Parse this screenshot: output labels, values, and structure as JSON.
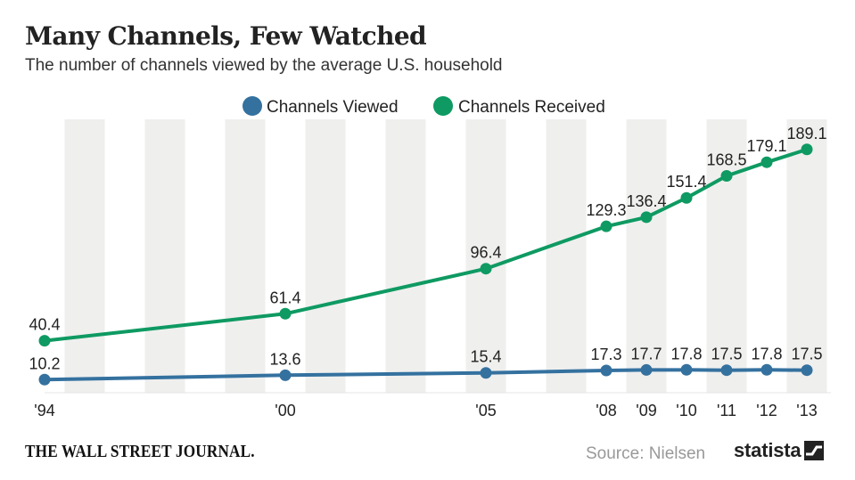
{
  "header": {
    "title": "Many Channels, Few Watched",
    "subtitle": "The number of channels viewed by the average U.S. household"
  },
  "footer": {
    "publisher": "THE WALL STREET JOURNAL.",
    "source": "Source: Nielsen",
    "brand": "statista"
  },
  "colors": {
    "viewed": "#34719f",
    "received": "#0e9a62",
    "band": "#efefee"
  },
  "chart_data": {
    "type": "line",
    "x": [
      1994,
      2000,
      2005,
      2008,
      2009,
      2010,
      2011,
      2012,
      2013
    ],
    "tick_labels": [
      "'94",
      "'00",
      "'05",
      "'08",
      "'09",
      "'10",
      "'11",
      "'12",
      "'13"
    ],
    "series": [
      {
        "name": "Channels Viewed",
        "values": [
          10.2,
          13.6,
          15.4,
          17.3,
          17.7,
          17.8,
          17.5,
          17.8,
          17.5
        ],
        "labels": [
          "10.2",
          "13.6",
          "15.4",
          "17.3",
          "17.7",
          "17.8",
          "17.5",
          "17.8",
          "17.5"
        ]
      },
      {
        "name": "Channels Received",
        "values": [
          40.4,
          61.4,
          96.4,
          129.3,
          136.4,
          151.4,
          168.5,
          179.1,
          189.1
        ],
        "labels": [
          "40.4",
          "61.4",
          "96.4",
          "129.3",
          "136.4",
          "151.4",
          "168.5",
          "179.1",
          "189.1"
        ]
      }
    ],
    "xlim": [
      1994,
      2013
    ],
    "ylim": [
      0,
      200
    ],
    "legend": "top-center",
    "grid": "alternating-year-bands"
  }
}
